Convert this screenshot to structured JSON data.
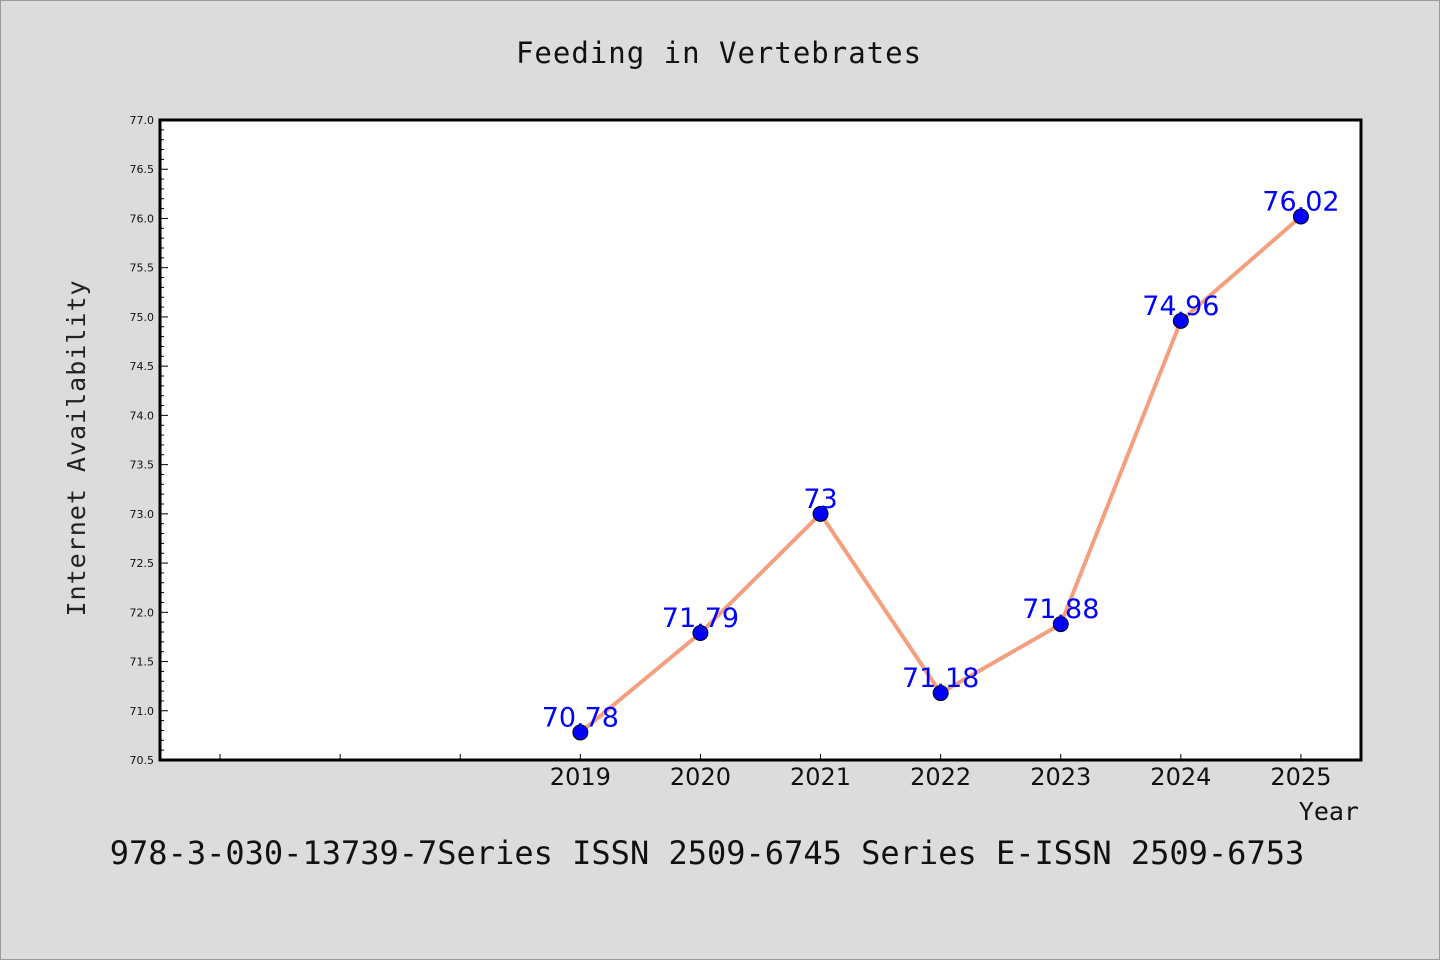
{
  "chart_data": {
    "type": "line",
    "title": "Feeding in Vertebrates",
    "xlabel": "Year",
    "ylabel": "Internet Availability",
    "x": [
      "2019",
      "2020",
      "2021",
      "2022",
      "2023",
      "2024",
      "2025"
    ],
    "series": [
      {
        "values": [
          70.78,
          71.79,
          73,
          71.18,
          71.88,
          74.96,
          76.02
        ],
        "labels": [
          "70.78",
          "71.79",
          "73",
          "71.18",
          "71.88",
          "74.96",
          "76.02"
        ]
      }
    ],
    "ylim": [
      70.5,
      77.0
    ],
    "yticks": [
      "70.5",
      "71.0",
      "71.5",
      "72.0",
      "72.5",
      "73.0",
      "73.5",
      "74.0",
      "74.5",
      "75.0",
      "75.5",
      "76.0",
      "76.5",
      "77.0"
    ],
    "x_slots": 10,
    "grid": false,
    "legend": "none",
    "colors": {
      "line": "#f4a07f",
      "marker": "#0000ff",
      "label": "#0000ff",
      "background": "#dcdcdc",
      "plot": "#ffffff"
    }
  },
  "footer": {
    "text": "978-3-030-13739-7Series ISSN 2509-6745 Series E-ISSN 2509-6753"
  }
}
